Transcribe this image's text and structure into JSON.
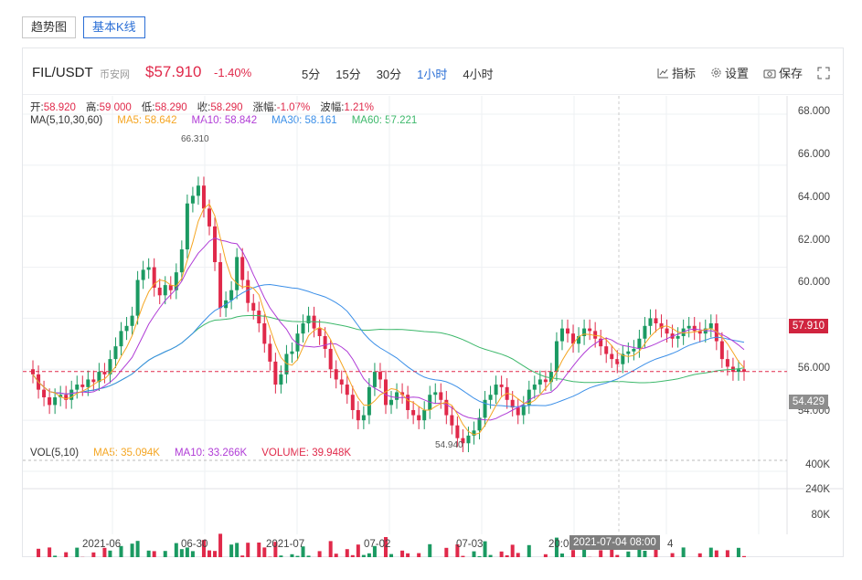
{
  "tabs": [
    {
      "label": "趋势图"
    },
    {
      "label": "基本K线"
    }
  ],
  "header": {
    "symbol": "FIL/USDT",
    "exchange": "币安网",
    "price": "$57.910",
    "change": "-1.40%",
    "periods": [
      "5分",
      "15分",
      "30分",
      "1小时",
      "4小时"
    ],
    "active_period": "1小时",
    "tools": {
      "indicator": "指标",
      "settings": "设置",
      "save": "保存"
    }
  },
  "ohlc": {
    "open_label": "开:",
    "open": "58.920",
    "high_label": "高:",
    "high": "59.000",
    "low_label": "低:",
    "low": "58.290",
    "close_label": "收:",
    "close": "58.290",
    "amp_label": "涨幅:",
    "amp": "-1.07%",
    "wave_label": "波幅:",
    "wave": "1.21%"
  },
  "ma_legend": {
    "title": "MA(5,10,30,60)",
    "ma5": "MA5: 58.642",
    "ma10": "MA10: 58.842",
    "ma30": "MA30: 58.161",
    "ma60": "MA60: 57.221"
  },
  "vol_legend": {
    "title": "VOL(5,10)",
    "ma5": "MA5: 35.094K",
    "ma10": "MA10: 33.266K",
    "volume": "VOLUME: 39.948K"
  },
  "y_axis": [
    "68.000",
    "66.000",
    "64.000",
    "62.000",
    "60.000",
    "58.000",
    "56.000",
    "54.000"
  ],
  "vol_axis": [
    "400K",
    "240K",
    "80K"
  ],
  "current_price_tag": "57.910",
  "low_price_tag": "54.429",
  "x_axis": [
    "2021-06",
    "06-30",
    "2021-07",
    "07-02",
    "07-03",
    "20:00",
    "4"
  ],
  "crosshair_time": "2021-07-04 08:00",
  "annotations": {
    "high": "66.310",
    "low": "54.940"
  },
  "colors": {
    "up": "#1b9a62",
    "down": "#e0294a",
    "ma5": "#f5a623",
    "ma10": "#b03cd6",
    "ma30": "#3b8fe8",
    "ma60": "#3db86b",
    "accent": "#2b6fd6"
  },
  "chart_data": {
    "type": "candlestick",
    "ylim": [
      54,
      68
    ],
    "close_series": [
      57.8,
      57.2,
      56.9,
      56.6,
      56.9,
      57.0,
      56.8,
      57.2,
      57.4,
      57.3,
      57.6,
      57.5,
      57.9,
      57.8,
      58.4,
      58.9,
      59.5,
      59.7,
      60.1,
      61.5,
      61.9,
      62.0,
      61.2,
      60.9,
      61.3,
      61.1,
      61.8,
      62.7,
      64.5,
      64.8,
      65.2,
      64.3,
      63.6,
      62.2,
      60.4,
      60.7,
      61.1,
      62.4,
      61.5,
      60.6,
      60.3,
      59.8,
      59.0,
      58.3,
      57.4,
      57.8,
      58.6,
      58.7,
      59.4,
      59.8,
      60.1,
      59.6,
      59.3,
      58.8,
      58.0,
      57.6,
      57.4,
      57.0,
      56.4,
      56.0,
      56.2,
      57.3,
      57.9,
      57.6,
      56.6,
      56.8,
      57.1,
      57.0,
      56.4,
      56.2,
      56.0,
      56.4,
      57.0,
      57.1,
      56.8,
      56.2,
      55.8,
      55.3,
      55.1,
      55.4,
      55.6,
      56.1,
      56.8,
      57.0,
      57.4,
      57.3,
      56.8,
      56.5,
      56.2,
      56.6,
      57.2,
      57.4,
      57.6,
      57.5,
      57.9,
      59.1,
      59.6,
      59.4,
      59.0,
      59.3,
      59.6,
      59.5,
      59.2,
      58.9,
      58.6,
      58.4,
      58.2,
      58.6,
      58.7,
      58.8,
      59.2,
      59.7,
      60.0,
      59.8,
      59.6,
      59.4,
      59.2,
      59.3,
      59.6,
      59.7,
      59.5,
      59.4,
      59.6,
      59.8,
      59.1,
      58.4,
      58.1,
      57.9,
      58.0,
      57.9
    ]
  }
}
